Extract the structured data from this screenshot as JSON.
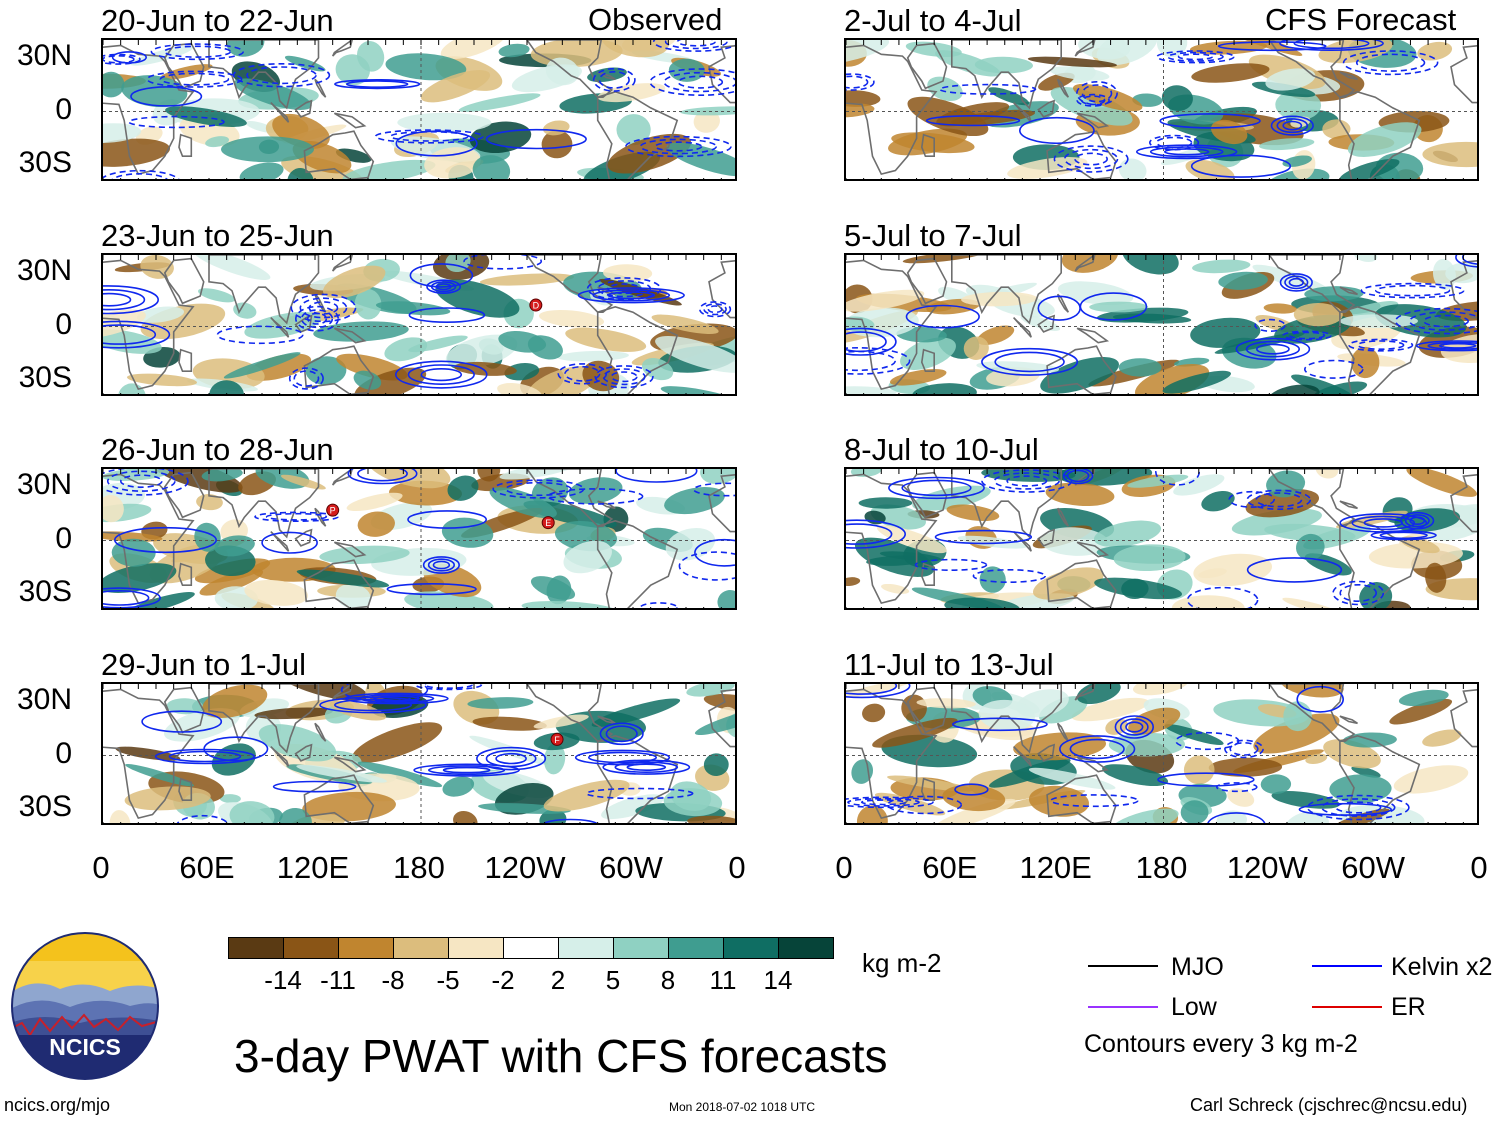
{
  "header": {
    "left_label": "Observed",
    "right_label": "CFS Forecast"
  },
  "panels": [
    {
      "id": "obs-1",
      "title": "20-Jun to 22-Jun",
      "column": "observed",
      "seed": 11,
      "storms": []
    },
    {
      "id": "obs-2",
      "title": "23-Jun to 25-Jun",
      "column": "observed",
      "seed": 23,
      "storms": [
        {
          "letter": "D",
          "lon": 245,
          "lat": 12
        }
      ]
    },
    {
      "id": "obs-3",
      "title": "26-Jun to 28-Jun",
      "column": "observed",
      "seed": 37,
      "storms": [
        {
          "letter": "P",
          "lon": 130,
          "lat": 17
        },
        {
          "letter": "E",
          "lon": 252,
          "lat": 10
        }
      ]
    },
    {
      "id": "obs-4",
      "title": "29-Jun to 1-Jul",
      "column": "observed",
      "seed": 41,
      "storms": [
        {
          "letter": "F",
          "lon": 257,
          "lat": 9
        }
      ]
    },
    {
      "id": "fcst-1",
      "title": "2-Jul to 4-Jul",
      "column": "forecast",
      "seed": 53,
      "storms": []
    },
    {
      "id": "fcst-2",
      "title": "5-Jul to 7-Jul",
      "column": "forecast",
      "seed": 67,
      "storms": []
    },
    {
      "id": "fcst-3",
      "title": "8-Jul to 10-Jul",
      "column": "forecast",
      "seed": 79,
      "storms": []
    },
    {
      "id": "fcst-4",
      "title": "11-Jul to 13-Jul",
      "column": "forecast",
      "seed": 83,
      "storms": []
    }
  ],
  "axes": {
    "y_labels": [
      "30N",
      "0",
      "30S"
    ],
    "x_labels": [
      "0",
      "60E",
      "120E",
      "180",
      "120W",
      "60W",
      "0"
    ],
    "lat_range": [
      -40,
      40
    ],
    "lon_range": [
      0,
      360
    ]
  },
  "colorbar": {
    "colors": [
      "#5a3a13",
      "#8a5516",
      "#c0852f",
      "#dcbd7d",
      "#f6e6c3",
      "#ffffff",
      "#d6efe9",
      "#8fd1c2",
      "#3f9d90",
      "#0f6e63",
      "#064439"
    ],
    "ticks": [
      "-14",
      "-11",
      "-8",
      "-5",
      "-2",
      "2",
      "5",
      "8",
      "11",
      "14"
    ],
    "units": "kg m-2"
  },
  "legend": {
    "items": [
      {
        "label": "MJO",
        "color": "#000000"
      },
      {
        "label": "Kelvin x2",
        "color": "#0000ff"
      },
      {
        "label": "Low",
        "color": "#9933ff"
      },
      {
        "label": "ER",
        "color": "#dd0000"
      }
    ],
    "note": "Contours every 3 kg m-2"
  },
  "logo": {
    "text": "NCICS"
  },
  "main_title": "3-day PWAT with CFS forecasts",
  "footer": {
    "website": "ncics.org/mjo",
    "timestamp": "Mon 2018-07-02 1018 UTC",
    "author": "Carl Schreck (cjschrec@ncsu.edu)"
  }
}
